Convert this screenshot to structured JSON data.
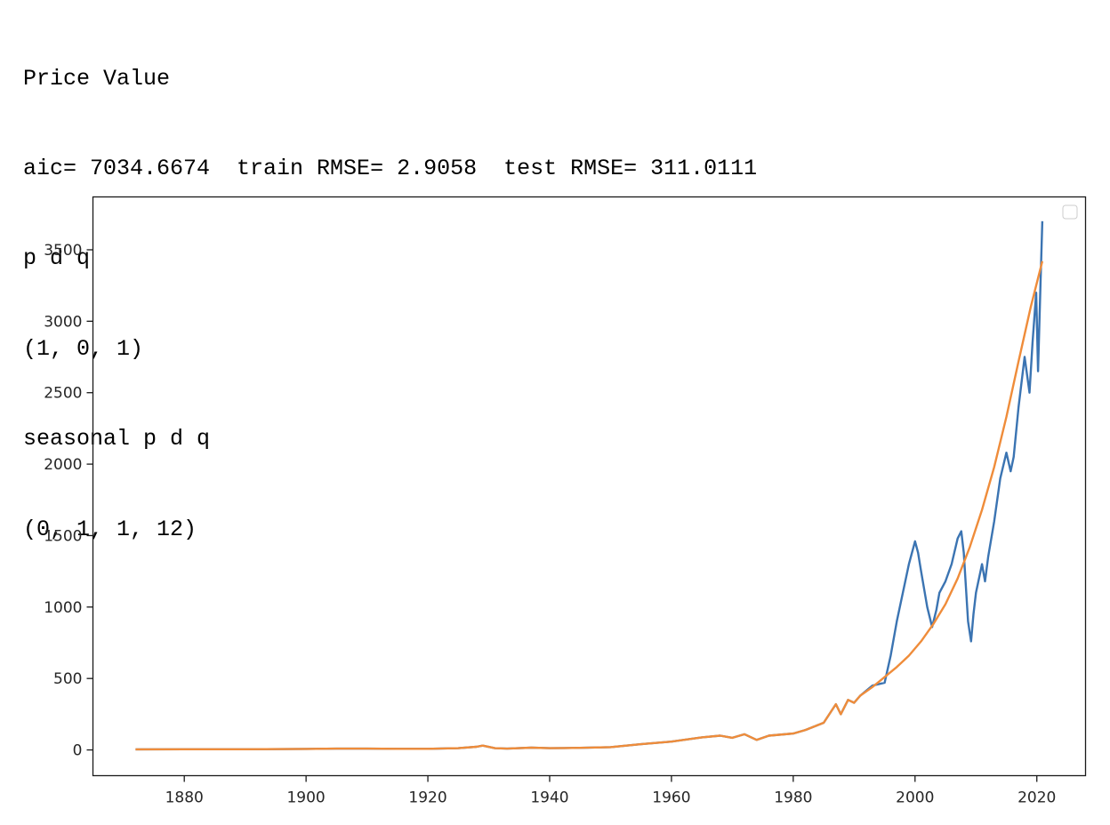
{
  "output": {
    "lines": [
      "Price Value",
      "aic= 7034.6674  train RMSE= 2.9058  test RMSE= 311.0111",
      "p d q",
      "(1, 0, 1)",
      "seasonal p d q",
      "(0, 1, 1, 12)"
    ]
  },
  "chart_data": {
    "type": "line",
    "title": "",
    "xlabel": "",
    "ylabel": "",
    "xlim": [
      1865,
      2028
    ],
    "ylim": [
      -180,
      3870
    ],
    "x_ticks": [
      1880,
      1900,
      1920,
      1940,
      1960,
      1980,
      2000,
      2020
    ],
    "y_ticks": [
      0,
      500,
      1000,
      1500,
      2000,
      2500,
      3000,
      3500
    ],
    "grid": false,
    "legend": {
      "placement": "top-right",
      "entries": []
    },
    "series": [
      {
        "color": "#3b74b2",
        "points": [
          [
            1872,
            4
          ],
          [
            1880,
            5
          ],
          [
            1890,
            5
          ],
          [
            1900,
            7
          ],
          [
            1905,
            9
          ],
          [
            1910,
            9
          ],
          [
            1915,
            8
          ],
          [
            1920,
            8
          ],
          [
            1925,
            12
          ],
          [
            1928,
            22
          ],
          [
            1929,
            30
          ],
          [
            1931,
            12
          ],
          [
            1933,
            9
          ],
          [
            1937,
            16
          ],
          [
            1940,
            12
          ],
          [
            1945,
            15
          ],
          [
            1950,
            20
          ],
          [
            1955,
            40
          ],
          [
            1960,
            58
          ],
          [
            1965,
            88
          ],
          [
            1968,
            100
          ],
          [
            1970,
            85
          ],
          [
            1972,
            110
          ],
          [
            1974,
            70
          ],
          [
            1976,
            100
          ],
          [
            1980,
            115
          ],
          [
            1982,
            140
          ],
          [
            1985,
            190
          ],
          [
            1987,
            320
          ],
          [
            1987.8,
            250
          ],
          [
            1989,
            350
          ],
          [
            1990,
            330
          ],
          [
            1991,
            380
          ],
          [
            1993,
            450
          ],
          [
            1995,
            470
          ],
          [
            1996,
            660
          ],
          [
            1997,
            900
          ],
          [
            1998,
            1100
          ],
          [
            1999,
            1300
          ],
          [
            2000,
            1460
          ],
          [
            2000.5,
            1380
          ],
          [
            2001,
            1250
          ],
          [
            2002,
            1000
          ],
          [
            2002.8,
            860
          ],
          [
            2003.5,
            980
          ],
          [
            2004,
            1100
          ],
          [
            2005,
            1180
          ],
          [
            2006,
            1300
          ],
          [
            2007,
            1480
          ],
          [
            2007.6,
            1530
          ],
          [
            2008,
            1380
          ],
          [
            2008.7,
            900
          ],
          [
            2009.2,
            760
          ],
          [
            2009.6,
            950
          ],
          [
            2010,
            1100
          ],
          [
            2011,
            1300
          ],
          [
            2011.5,
            1180
          ],
          [
            2012,
            1350
          ],
          [
            2013,
            1600
          ],
          [
            2014,
            1900
          ],
          [
            2015,
            2080
          ],
          [
            2015.7,
            1950
          ],
          [
            2016.2,
            2050
          ],
          [
            2017,
            2400
          ],
          [
            2018,
            2750
          ],
          [
            2018.8,
            2500
          ],
          [
            2019.3,
            2850
          ],
          [
            2019.9,
            3200
          ],
          [
            2020.2,
            2650
          ],
          [
            2020.6,
            3250
          ],
          [
            2020.9,
            3700
          ]
        ]
      },
      {
        "color": "#ef8c3a",
        "points": [
          [
            1872,
            4
          ],
          [
            1880,
            5
          ],
          [
            1890,
            5
          ],
          [
            1900,
            7
          ],
          [
            1905,
            9
          ],
          [
            1910,
            9
          ],
          [
            1915,
            8
          ],
          [
            1920,
            8
          ],
          [
            1925,
            12
          ],
          [
            1928,
            22
          ],
          [
            1929,
            30
          ],
          [
            1931,
            12
          ],
          [
            1933,
            9
          ],
          [
            1937,
            16
          ],
          [
            1940,
            12
          ],
          [
            1945,
            15
          ],
          [
            1950,
            20
          ],
          [
            1955,
            40
          ],
          [
            1960,
            58
          ],
          [
            1965,
            88
          ],
          [
            1968,
            100
          ],
          [
            1970,
            85
          ],
          [
            1972,
            110
          ],
          [
            1974,
            70
          ],
          [
            1976,
            100
          ],
          [
            1980,
            115
          ],
          [
            1982,
            140
          ],
          [
            1985,
            190
          ],
          [
            1987,
            320
          ],
          [
            1987.8,
            250
          ],
          [
            1989,
            350
          ],
          [
            1990,
            330
          ],
          [
            1991,
            380
          ],
          [
            1993,
            440
          ],
          [
            1995,
            510
          ],
          [
            1997,
            580
          ],
          [
            1999,
            660
          ],
          [
            2001,
            760
          ],
          [
            2003,
            880
          ],
          [
            2005,
            1020
          ],
          [
            2007,
            1200
          ],
          [
            2009,
            1420
          ],
          [
            2011,
            1680
          ],
          [
            2013,
            1980
          ],
          [
            2015,
            2330
          ],
          [
            2017,
            2720
          ],
          [
            2019,
            3100
          ],
          [
            2020.9,
            3420
          ]
        ]
      }
    ]
  }
}
